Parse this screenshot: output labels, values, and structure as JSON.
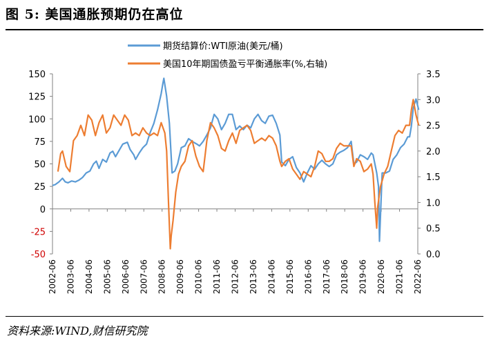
{
  "figure": {
    "title": "图 5:  美国通胀预期仍在高位",
    "source": "资料来源:WIND,财信研究院"
  },
  "chart_data": {
    "type": "line",
    "x_ticks": [
      "2002-06",
      "2003-06",
      "2004-06",
      "2005-06",
      "2006-06",
      "2007-06",
      "2008-06",
      "2009-06",
      "2010-06",
      "2011-06",
      "2012-06",
      "2013-06",
      "2014-06",
      "2015-06",
      "2016-06",
      "2017-06",
      "2018-06",
      "2019-06",
      "2020-06",
      "2021-06",
      "2022-06"
    ],
    "y_left": {
      "ticks": [
        "150",
        "125",
        "100",
        "75",
        "50",
        "25",
        "0",
        "-25",
        "-50"
      ],
      "range": [
        -50,
        150
      ]
    },
    "y_right": {
      "ticks": [
        "3.5",
        "3.0",
        "2.5",
        "2.0",
        "1.5",
        "1.0",
        "0.5",
        "0.0"
      ],
      "range": [
        0,
        3.5
      ]
    },
    "series": [
      {
        "name": "期货结算价:WTI原油(美元/桶)",
        "color": "#5b9bd5",
        "axis": "left",
        "x": [
          2002.45,
          2002.6,
          2002.8,
          2003.0,
          2003.15,
          2003.3,
          2003.5,
          2003.7,
          2003.9,
          2004.1,
          2004.3,
          2004.5,
          2004.7,
          2004.85,
          2005.0,
          2005.2,
          2005.4,
          2005.6,
          2005.75,
          2005.9,
          2006.1,
          2006.3,
          2006.55,
          2006.7,
          2006.9,
          2007.0,
          2007.2,
          2007.4,
          2007.6,
          2007.8,
          2007.9,
          2008.0,
          2008.2,
          2008.4,
          2008.5,
          2008.55,
          2008.7,
          2008.85,
          2009.0,
          2009.15,
          2009.3,
          2009.5,
          2009.7,
          2009.9,
          2010.1,
          2010.35,
          2010.5,
          2010.7,
          2010.9,
          2011.1,
          2011.3,
          2011.5,
          2011.7,
          2011.9,
          2012.1,
          2012.3,
          2012.5,
          2012.7,
          2012.9,
          2013.1,
          2013.3,
          2013.5,
          2013.7,
          2013.9,
          2014.1,
          2014.3,
          2014.5,
          2014.7,
          2014.9,
          2015.0,
          2015.2,
          2015.4,
          2015.6,
          2015.8,
          2016.0,
          2016.2,
          2016.4,
          2016.6,
          2016.8,
          2017.0,
          2017.2,
          2017.4,
          2017.6,
          2017.8,
          2018.0,
          2018.2,
          2018.4,
          2018.6,
          2018.8,
          2018.95,
          2019.1,
          2019.3,
          2019.5,
          2019.7,
          2019.9,
          2020.0,
          2020.2,
          2020.3,
          2020.35,
          2020.5,
          2020.7,
          2020.9,
          2021.1,
          2021.3,
          2021.5,
          2021.7,
          2021.9,
          2022.0,
          2022.1,
          2022.2,
          2022.35,
          2022.5
        ],
        "values": [
          26,
          27,
          30,
          34,
          30,
          29,
          31,
          30,
          32,
          35,
          40,
          42,
          50,
          53,
          45,
          55,
          52,
          62,
          64,
          58,
          65,
          72,
          74,
          66,
          60,
          55,
          62,
          68,
          72,
          85,
          90,
          95,
          110,
          128,
          140,
          145,
          125,
          95,
          40,
          42,
          50,
          68,
          70,
          78,
          75,
          72,
          70,
          75,
          82,
          90,
          105,
          100,
          88,
          95,
          105,
          105,
          88,
          92,
          88,
          93,
          90,
          100,
          105,
          98,
          95,
          103,
          104,
          95,
          82,
          52,
          48,
          55,
          58,
          46,
          40,
          30,
          40,
          48,
          44,
          50,
          54,
          50,
          47,
          50,
          60,
          63,
          65,
          68,
          75,
          50,
          52,
          60,
          58,
          55,
          62,
          60,
          40,
          25,
          -36,
          40,
          40,
          42,
          55,
          60,
          68,
          72,
          80,
          80,
          92,
          112,
          122,
          110
        ]
      },
      {
        "name": "美国10年期国债盈亏平衡通胀率(%,右轴)",
        "color": "#ed7d31",
        "axis": "right",
        "x": [
          2002.75,
          2002.9,
          2003.0,
          2003.2,
          2003.4,
          2003.6,
          2003.8,
          2004.0,
          2004.2,
          2004.4,
          2004.6,
          2004.8,
          2005.0,
          2005.2,
          2005.4,
          2005.6,
          2005.8,
          2006.0,
          2006.2,
          2006.4,
          2006.6,
          2006.8,
          2007.0,
          2007.2,
          2007.4,
          2007.6,
          2007.8,
          2008.0,
          2008.2,
          2008.4,
          2008.6,
          2008.7,
          2008.8,
          2008.9,
          2008.95,
          2009.05,
          2009.2,
          2009.35,
          2009.5,
          2009.7,
          2009.9,
          2010.1,
          2010.3,
          2010.5,
          2010.7,
          2010.9,
          2011.1,
          2011.3,
          2011.5,
          2011.7,
          2011.9,
          2012.1,
          2012.3,
          2012.5,
          2012.7,
          2012.9,
          2013.1,
          2013.3,
          2013.5,
          2013.7,
          2013.9,
          2014.1,
          2014.3,
          2014.5,
          2014.7,
          2014.9,
          2015.0,
          2015.2,
          2015.4,
          2015.6,
          2015.8,
          2016.0,
          2016.2,
          2016.4,
          2016.6,
          2016.8,
          2017.0,
          2017.2,
          2017.4,
          2017.6,
          2017.8,
          2018.0,
          2018.2,
          2018.4,
          2018.6,
          2018.8,
          2018.95,
          2019.1,
          2019.3,
          2019.5,
          2019.7,
          2019.9,
          2020.0,
          2020.1,
          2020.2,
          2020.25,
          2020.4,
          2020.6,
          2020.8,
          2021.0,
          2021.2,
          2021.4,
          2021.6,
          2021.8,
          2022.0,
          2022.1,
          2022.2,
          2022.35,
          2022.5
        ],
        "values": [
          1.6,
          1.95,
          2.0,
          1.7,
          1.6,
          2.2,
          2.3,
          2.5,
          2.3,
          2.7,
          2.6,
          2.3,
          2.55,
          2.7,
          2.35,
          2.45,
          2.7,
          2.6,
          2.5,
          2.7,
          2.6,
          2.3,
          2.35,
          2.3,
          2.45,
          2.35,
          2.3,
          2.35,
          2.3,
          2.55,
          2.35,
          2.0,
          1.0,
          0.1,
          0.35,
          0.65,
          1.2,
          1.55,
          1.7,
          1.8,
          2.1,
          2.2,
          1.9,
          1.7,
          1.6,
          2.2,
          2.55,
          2.45,
          2.3,
          2.05,
          2.0,
          2.2,
          2.35,
          2.15,
          2.4,
          2.45,
          2.5,
          2.4,
          2.15,
          2.2,
          2.25,
          2.2,
          2.3,
          2.25,
          2.1,
          1.8,
          1.7,
          1.8,
          1.85,
          1.65,
          1.55,
          1.45,
          1.6,
          1.55,
          1.5,
          1.7,
          2.0,
          1.95,
          1.8,
          1.8,
          1.85,
          2.05,
          2.15,
          2.1,
          2.1,
          2.1,
          1.7,
          1.85,
          1.8,
          1.6,
          1.65,
          1.75,
          1.55,
          1.0,
          0.5,
          0.9,
          1.3,
          1.55,
          1.7,
          2.0,
          2.3,
          2.4,
          2.35,
          2.5,
          2.5,
          2.8,
          3.0,
          2.7,
          2.5
        ]
      }
    ]
  }
}
